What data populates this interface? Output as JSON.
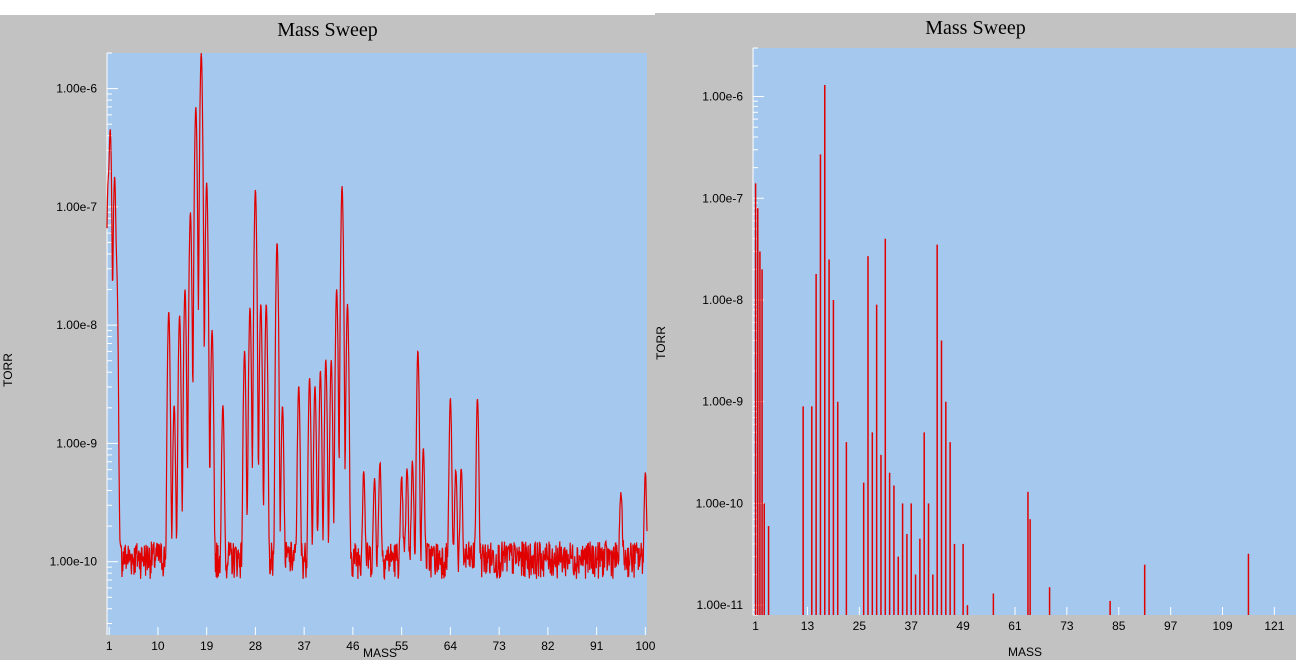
{
  "chart_data": [
    {
      "type": "line",
      "title": "Mass Sweep",
      "xlabel": "MASS",
      "ylabel": "TORR",
      "y_scale": "log",
      "xlim": [
        0.6,
        100.3
      ],
      "ylim": [
        2.4e-11,
        2e-06
      ],
      "x_ticks": [
        1,
        10,
        19,
        28,
        37,
        46,
        55,
        64,
        73,
        82,
        91,
        100
      ],
      "x_tick_labels": [
        "1",
        "10",
        "19",
        "28",
        "37",
        "46",
        "55",
        "64",
        "73",
        "82",
        "91",
        "100"
      ],
      "y_ticks": [
        1e-10,
        1e-09,
        1e-08,
        1e-07,
        1e-06
      ],
      "y_tick_labels": [
        "1.00e-10",
        "1.00e-9",
        "1.00e-8",
        "1.00e-7",
        "1.00e-6"
      ],
      "background": "#a5c9ee",
      "series": [
        {
          "color": "#e00000",
          "baseline": 1.1e-10,
          "peaks": [
            [
              0.8,
              1.5e-07
            ],
            [
              1.2,
              4.5e-07
            ],
            [
              2.0,
              1.8e-07
            ],
            [
              2.4,
              2.5e-08
            ],
            [
              12.0,
              1.3e-08
            ],
            [
              13.0,
              2e-09
            ],
            [
              14.0,
              1.2e-08
            ],
            [
              15.0,
              2e-08
            ],
            [
              16.0,
              9e-08
            ],
            [
              17.0,
              7e-07
            ],
            [
              18.0,
              2e-06
            ],
            [
              19.0,
              1.6e-07
            ],
            [
              20.0,
              9e-09
            ],
            [
              22.0,
              2e-09
            ],
            [
              26.0,
              6e-09
            ],
            [
              27.0,
              1.4e-08
            ],
            [
              28.0,
              1.4e-07
            ],
            [
              29.0,
              1.5e-08
            ],
            [
              30.0,
              1.5e-08
            ],
            [
              32.0,
              5e-08
            ],
            [
              33.0,
              2e-09
            ],
            [
              36.0,
              3e-09
            ],
            [
              38.0,
              3.5e-09
            ],
            [
              39.0,
              3e-09
            ],
            [
              40.0,
              4e-09
            ],
            [
              41.0,
              5e-09
            ],
            [
              42.0,
              5e-09
            ],
            [
              43.0,
              2e-08
            ],
            [
              44.0,
              1.5e-07
            ],
            [
              45.0,
              1.5e-08
            ],
            [
              48.0,
              5e-10
            ],
            [
              50.0,
              4e-10
            ],
            [
              51.0,
              6e-10
            ],
            [
              55.0,
              4e-10
            ],
            [
              56.0,
              5e-10
            ],
            [
              57.0,
              6e-10
            ],
            [
              58.0,
              6e-09
            ],
            [
              59.0,
              8e-10
            ],
            [
              64.0,
              2.3e-09
            ],
            [
              65.0,
              5e-10
            ],
            [
              66.0,
              5e-10
            ],
            [
              69.0,
              2.3e-09
            ],
            [
              95.5,
              3e-10
            ],
            [
              100.0,
              4.5e-10
            ]
          ]
        }
      ]
    },
    {
      "type": "bar",
      "title": "Mass Sweep",
      "xlabel": "MASS",
      "ylabel": "TORR",
      "y_scale": "log",
      "xlim": [
        0.4,
        126
      ],
      "ylim": [
        8e-12,
        3e-06
      ],
      "x_ticks": [
        1,
        13,
        25,
        37,
        49,
        61,
        73,
        85,
        97,
        109,
        121
      ],
      "x_tick_labels": [
        "1",
        "13",
        "25",
        "37",
        "49",
        "61",
        "73",
        "85",
        "97",
        "109",
        "121"
      ],
      "y_ticks": [
        1e-11,
        1e-10,
        1e-09,
        1e-08,
        1e-07,
        1e-06
      ],
      "y_tick_labels": [
        "1.00e-11",
        "1.00e-10",
        "1.00e-9",
        "1.00e-8",
        "1.00e-7",
        "1.00e-6"
      ],
      "background": "#a5c9ee",
      "series": [
        {
          "color": "#e00000",
          "x": [
            1,
            1.5,
            2,
            2.5,
            3,
            4,
            12,
            14,
            15,
            16,
            17,
            18,
            19,
            20,
            22,
            26,
            27,
            28,
            29,
            30,
            31,
            32,
            33,
            34,
            35,
            36,
            37,
            38,
            39,
            40,
            41,
            42,
            43,
            44,
            45,
            46,
            47,
            49,
            50,
            56,
            64,
            64.5,
            69,
            83,
            91,
            115
          ],
          "values": [
            1.4e-07,
            8e-08,
            3e-08,
            2e-08,
            1e-10,
            6e-11,
            9e-10,
            9e-10,
            1.8e-08,
            2.7e-07,
            1.3e-06,
            2.5e-08,
            1e-08,
            1e-09,
            4e-10,
            1.6e-10,
            2.7e-08,
            5e-10,
            9e-09,
            3e-10,
            4e-08,
            2e-10,
            1.5e-10,
            3e-11,
            1e-10,
            5e-11,
            1e-10,
            2e-11,
            4.5e-11,
            5e-10,
            1e-10,
            2e-11,
            3.5e-08,
            4e-09,
            1e-09,
            4e-10,
            4e-11,
            4e-11,
            1e-11,
            1.3e-11,
            1.3e-10,
            7e-11,
            1.5e-11,
            1.1e-11,
            2.5e-11,
            3.2e-11
          ]
        }
      ]
    }
  ]
}
